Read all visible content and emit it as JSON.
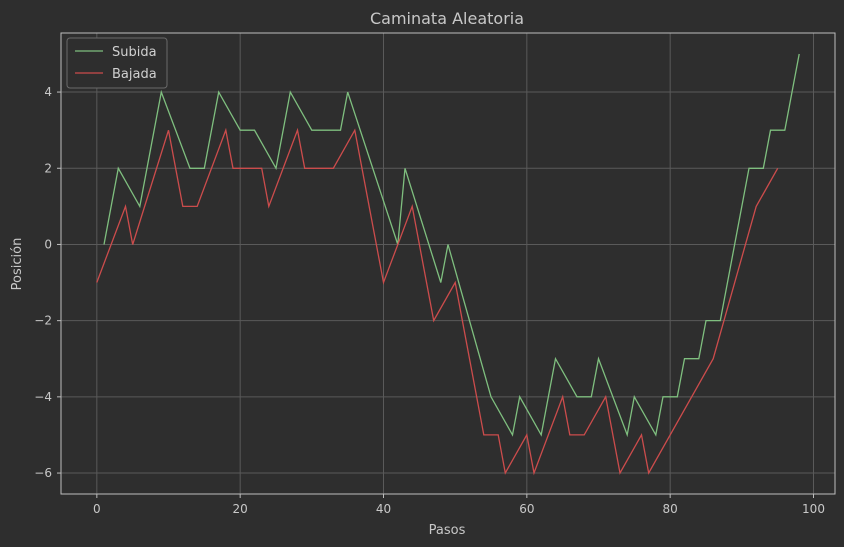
{
  "chart_data": {
    "type": "line",
    "title": "Caminata Aleatoria",
    "xlabel": "Pasos",
    "ylabel": "Posición",
    "xlim": [
      -5,
      103
    ],
    "ylim": [
      -6.55,
      5.55
    ],
    "xticks": [
      0,
      20,
      40,
      60,
      80,
      100
    ],
    "yticks": [
      -6,
      -4,
      -2,
      0,
      2,
      4
    ],
    "ytick_labels": [
      "−6",
      "−4",
      "−2",
      "0",
      "2",
      "4"
    ],
    "grid": true,
    "legend": "top-left",
    "background": "#2e2e2e",
    "grid_color": "#5a5a5a",
    "spine_color": "#bdbdbd",
    "series": [
      {
        "name": "Subida",
        "color": "#7fbf7f",
        "points": [
          [
            1,
            0
          ],
          [
            3,
            2
          ],
          [
            6,
            1
          ],
          [
            9,
            4
          ],
          [
            13,
            2
          ],
          [
            15,
            2
          ],
          [
            17,
            4
          ],
          [
            20,
            3
          ],
          [
            22,
            3
          ],
          [
            25,
            2
          ],
          [
            27,
            4
          ],
          [
            30,
            3
          ],
          [
            34,
            3
          ],
          [
            35,
            4
          ],
          [
            42,
            0
          ],
          [
            43,
            2
          ],
          [
            48,
            -1
          ],
          [
            49,
            0
          ],
          [
            55,
            -4
          ],
          [
            58,
            -5
          ],
          [
            59,
            -4
          ],
          [
            62,
            -5
          ],
          [
            64,
            -3
          ],
          [
            67,
            -4
          ],
          [
            69,
            -4
          ],
          [
            70,
            -3
          ],
          [
            74,
            -5
          ],
          [
            75,
            -4
          ],
          [
            78,
            -5
          ],
          [
            79,
            -4
          ],
          [
            81,
            -4
          ],
          [
            82,
            -3
          ],
          [
            84,
            -3
          ],
          [
            85,
            -2
          ],
          [
            87,
            -2
          ],
          [
            91,
            2
          ],
          [
            93,
            2
          ],
          [
            94,
            3
          ],
          [
            96,
            3
          ],
          [
            98,
            5
          ]
        ]
      },
      {
        "name": "Bajada",
        "color": "#cc4c4c",
        "points": [
          [
            0,
            -1
          ],
          [
            4,
            1
          ],
          [
            5,
            0
          ],
          [
            10,
            3
          ],
          [
            12,
            1
          ],
          [
            14,
            1
          ],
          [
            18,
            3
          ],
          [
            19,
            2
          ],
          [
            23,
            2
          ],
          [
            24,
            1
          ],
          [
            28,
            3
          ],
          [
            29,
            2
          ],
          [
            33,
            2
          ],
          [
            36,
            3
          ],
          [
            40,
            -1
          ],
          [
            44,
            1
          ],
          [
            47,
            -2
          ],
          [
            50,
            -1
          ],
          [
            54,
            -5
          ],
          [
            56,
            -5
          ],
          [
            57,
            -6
          ],
          [
            60,
            -5
          ],
          [
            61,
            -6
          ],
          [
            65,
            -4
          ],
          [
            66,
            -5
          ],
          [
            68,
            -5
          ],
          [
            71,
            -4
          ],
          [
            73,
            -6
          ],
          [
            76,
            -5
          ],
          [
            77,
            -6
          ],
          [
            86,
            -3
          ],
          [
            92,
            1
          ],
          [
            95,
            2
          ]
        ]
      }
    ]
  }
}
